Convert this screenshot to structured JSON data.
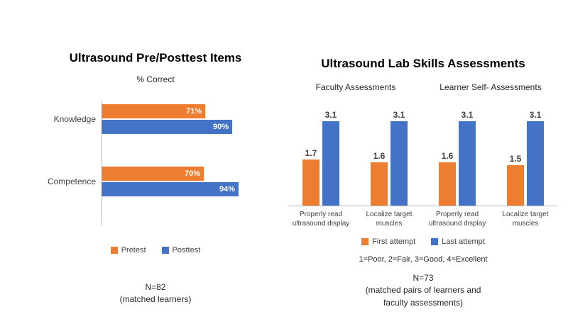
{
  "chart_data": [
    {
      "type": "bar",
      "orientation": "horizontal",
      "title": "Ultrasound Pre/Posttest Items",
      "subtitle": "% Correct",
      "categories": [
        "Knowledge",
        "Competence"
      ],
      "series": [
        {
          "name": "Pretest",
          "color": "#ED7D31",
          "values": [
            71,
            70
          ],
          "labels": [
            "71%",
            "70%"
          ]
        },
        {
          "name": "Posttest",
          "color": "#4472C4",
          "values": [
            90,
            94
          ],
          "labels": [
            "90%",
            "94%"
          ]
        }
      ],
      "xlim": [
        0,
        100
      ],
      "grid": false,
      "legend_position": "bottom",
      "note_lines": [
        "N=82",
        "(matched learners)"
      ]
    },
    {
      "type": "bar",
      "orientation": "vertical",
      "title": "Ultrasound Lab Skills Assessments",
      "group_headers": [
        "Faculty Assessments",
        "Learner Self- Assessments"
      ],
      "categories": [
        "Properly read\nultrasound display",
        "Localize target\nmuscles",
        "Properly read\nultrasound display",
        "Localize target\nmuscles"
      ],
      "series": [
        {
          "name": "First attempt",
          "color": "#ED7D31",
          "values": [
            1.7,
            1.6,
            1.6,
            1.5
          ],
          "labels": [
            "1.7",
            "1.6",
            "1.6",
            "1.5"
          ]
        },
        {
          "name": "Last attempt",
          "color": "#4472C4",
          "values": [
            3.1,
            3.1,
            3.1,
            3.1
          ],
          "labels": [
            "3.1",
            "3.1",
            "3.1",
            "3.1"
          ]
        }
      ],
      "ylim": [
        0,
        3.5
      ],
      "grid": false,
      "legend_position": "bottom",
      "scale_note": "1=Poor, 2=Fair, 3=Good, 4=Excellent",
      "note_lines": [
        "N=73",
        "(matched pairs of learners and",
        "faculty assessments)"
      ]
    }
  ]
}
